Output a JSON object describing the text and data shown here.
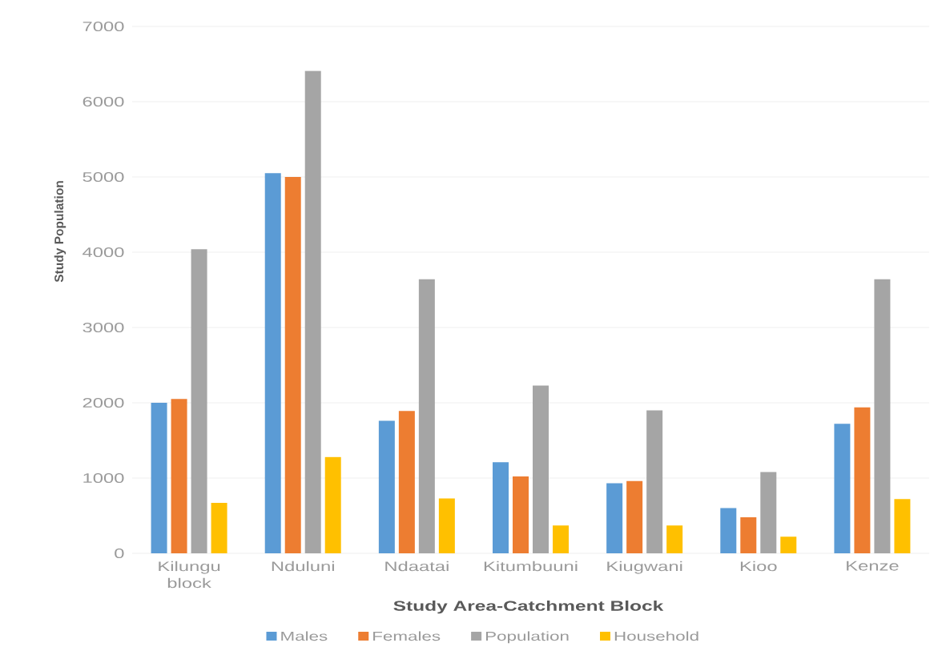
{
  "chart_data": {
    "type": "bar",
    "xlabel": "Study Area-Catchment Block",
    "ylabel": "Study Population",
    "categories": [
      "Kilungu block",
      "Nduluni",
      "Ndaatai",
      "Kitumbuuni",
      "Kiugwani",
      "Kioo",
      "Kenze"
    ],
    "series": [
      {
        "name": "Males",
        "color": "#5b9bd5",
        "values": [
          2000,
          5050,
          1760,
          1210,
          930,
          600,
          1720
        ]
      },
      {
        "name": "Females",
        "color": "#ed7d31",
        "values": [
          2050,
          5000,
          1890,
          1020,
          960,
          480,
          1940
        ]
      },
      {
        "name": "Population",
        "color": "#a5a5a5",
        "values": [
          4040,
          6410,
          3640,
          2230,
          1900,
          1080,
          3640
        ]
      },
      {
        "name": "Household",
        "color": "#ffc000",
        "values": [
          670,
          1280,
          730,
          370,
          370,
          220,
          720
        ]
      }
    ],
    "ylim": [
      0,
      7000
    ],
    "yticks": [
      0,
      1000,
      2000,
      3000,
      4000,
      5000,
      6000,
      7000
    ],
    "grid": "y",
    "legend": "bottom"
  }
}
